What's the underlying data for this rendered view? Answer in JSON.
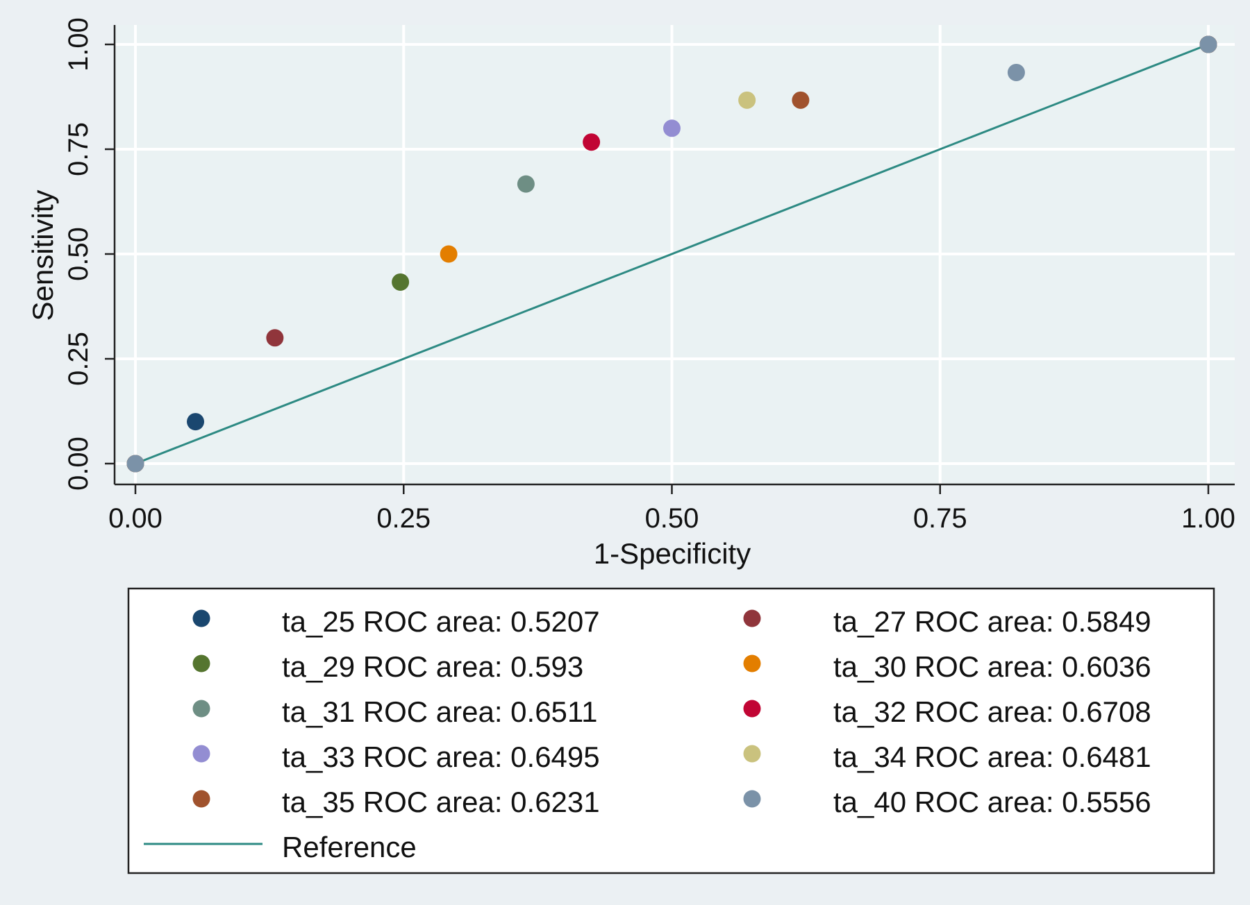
{
  "chart_data": {
    "type": "scatter",
    "xlabel": "1-Specificity",
    "ylabel": "Sensitivity",
    "xlim": [
      0,
      1
    ],
    "ylim": [
      0,
      1
    ],
    "xticks": [
      "0.00",
      "0.25",
      "0.50",
      "0.75",
      "1.00"
    ],
    "yticks": [
      "0.00",
      "0.25",
      "0.50",
      "0.75",
      "1.00"
    ],
    "grid": true,
    "legend_position": "bottom",
    "series": [
      {
        "name": "ta_25 ROC area: 0.5207",
        "color": "#1a476f",
        "points": [
          [
            0,
            0
          ],
          [
            0.056,
            0.1
          ],
          [
            1,
            1
          ]
        ]
      },
      {
        "name": "ta_27 ROC area: 0.5849",
        "color": "#90353b",
        "points": [
          [
            0,
            0
          ],
          [
            0.13,
            0.3
          ],
          [
            1,
            1
          ]
        ]
      },
      {
        "name": "ta_29 ROC area: 0.593",
        "color": "#55752f",
        "points": [
          [
            0,
            0
          ],
          [
            0.247,
            0.433
          ],
          [
            1,
            1
          ]
        ]
      },
      {
        "name": "ta_30 ROC area: 0.6036",
        "color": "#e37e00",
        "points": [
          [
            0,
            0
          ],
          [
            0.292,
            0.5
          ],
          [
            1,
            1
          ]
        ]
      },
      {
        "name": "ta_31 ROC area: 0.6511",
        "color": "#6e8e84",
        "points": [
          [
            0,
            0
          ],
          [
            0.364,
            0.667
          ],
          [
            1,
            1
          ]
        ]
      },
      {
        "name": "ta_32 ROC area: 0.6708",
        "color": "#c10534",
        "points": [
          [
            0,
            0
          ],
          [
            0.425,
            0.767
          ],
          [
            1,
            1
          ]
        ]
      },
      {
        "name": "ta_33 ROC area: 0.6495",
        "color": "#938dd2",
        "points": [
          [
            0,
            0
          ],
          [
            0.5,
            0.8
          ],
          [
            1,
            1
          ]
        ]
      },
      {
        "name": "ta_34 ROC area: 0.6481",
        "color": "#cac27e",
        "points": [
          [
            0,
            0
          ],
          [
            0.57,
            0.867
          ],
          [
            1,
            1
          ]
        ]
      },
      {
        "name": "ta_35 ROC area: 0.6231",
        "color": "#a0522d",
        "points": [
          [
            0,
            0
          ],
          [
            0.62,
            0.867
          ],
          [
            1,
            1
          ]
        ]
      },
      {
        "name": "ta_40 ROC area: 0.5556",
        "color": "#7b92a8",
        "points": [
          [
            0,
            0
          ],
          [
            0.821,
            0.933
          ],
          [
            1,
            1
          ]
        ]
      }
    ],
    "reference": {
      "name": "Reference",
      "color": "#2d8a83",
      "points": [
        [
          0,
          0
        ],
        [
          1,
          1
        ]
      ]
    }
  }
}
